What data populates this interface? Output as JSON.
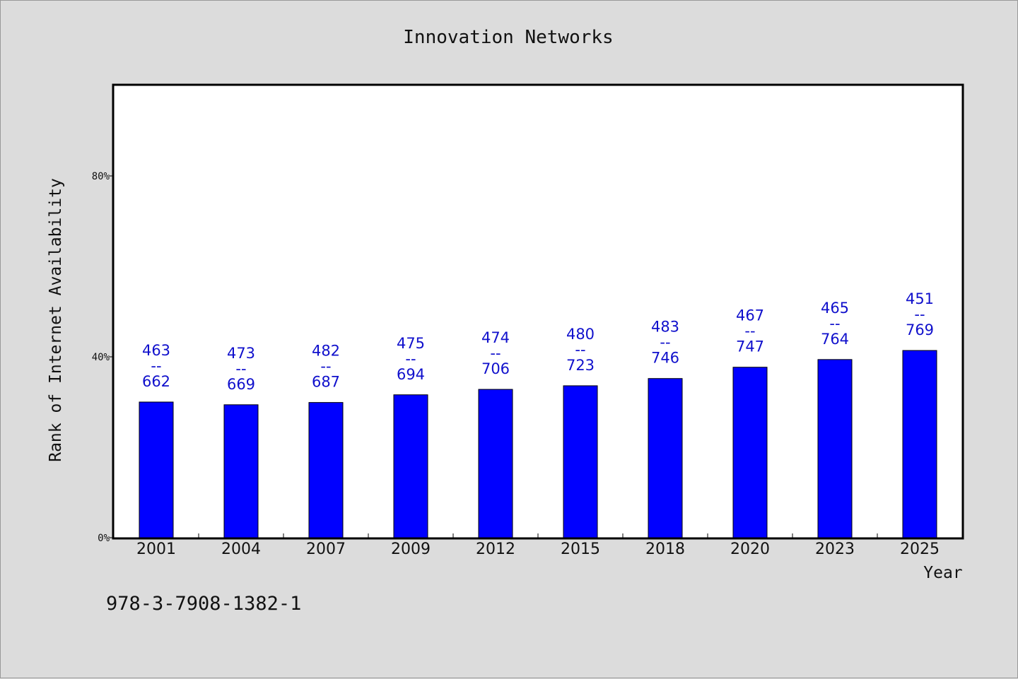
{
  "chart_data": {
    "type": "bar",
    "title": "Innovation Networks",
    "xlabel": "Year",
    "ylabel": "Rank of Internet Availability",
    "categories": [
      "2001",
      "2004",
      "2007",
      "2009",
      "2012",
      "2015",
      "2018",
      "2020",
      "2023",
      "2025"
    ],
    "values": [
      30,
      29.4,
      29.9,
      31.6,
      32.8,
      33.6,
      35.2,
      37.7,
      39.4,
      41.4
    ],
    "data_labels": [
      [
        "463",
        "--",
        "662"
      ],
      [
        "473",
        "--",
        "669"
      ],
      [
        "482",
        "--",
        "687"
      ],
      [
        "475",
        "--",
        "694"
      ],
      [
        "474",
        "--",
        "706"
      ],
      [
        "480",
        "--",
        "723"
      ],
      [
        "483",
        "--",
        "746"
      ],
      [
        "467",
        "--",
        "747"
      ],
      [
        "465",
        "--",
        "764"
      ],
      [
        "451",
        "--",
        "769"
      ]
    ],
    "yticks": [
      {
        "value": 0,
        "label": "0%"
      },
      {
        "value": 40,
        "label": "40%"
      },
      {
        "value": 80,
        "label": "80%"
      }
    ],
    "ylim": [
      0,
      100
    ],
    "grid": false,
    "legend": "none",
    "colors": {
      "bar": "#0000ff",
      "bar_edge": "#000000",
      "data_label": "#1010cc",
      "plot_background": "#ffffff",
      "figure_background": "#dcdcdc"
    }
  },
  "footnote": "978-3-7908-1382-1"
}
